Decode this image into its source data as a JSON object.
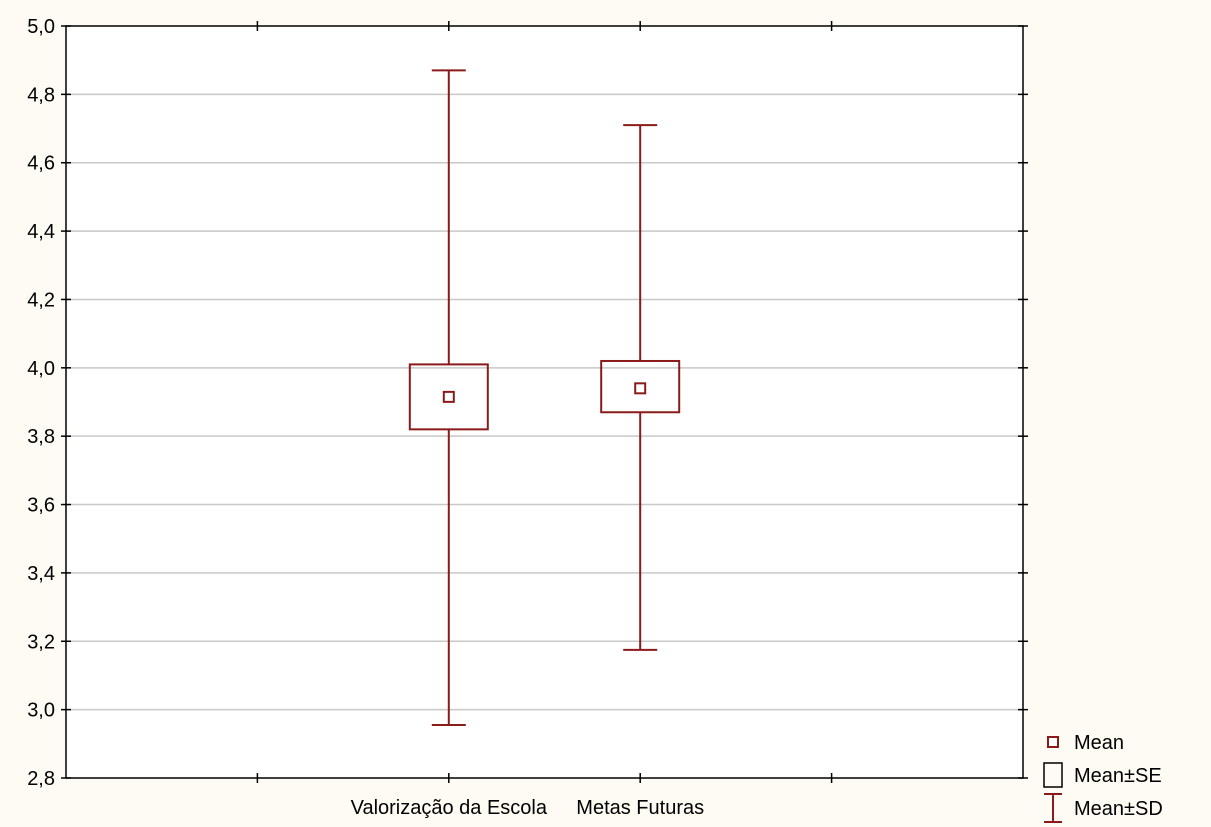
{
  "chart_data": {
    "type": "box",
    "title": "",
    "xlabel": "",
    "ylabel": "",
    "categories": [
      "Valorização da Escola",
      "Metas Futuras"
    ],
    "mean": [
      3.915,
      3.94
    ],
    "se_low": [
      3.82,
      3.87
    ],
    "se_high": [
      4.01,
      4.02
    ],
    "sd_low": [
      2.955,
      3.175
    ],
    "sd_high": [
      4.87,
      4.71
    ],
    "ylim": [
      2.8,
      5.0
    ],
    "yticks": [
      "2,8",
      "3,0",
      "3,2",
      "3,4",
      "3,6",
      "3,8",
      "4,0",
      "4,2",
      "4,4",
      "4,6",
      "4,8",
      "5,0"
    ],
    "ytick_values": [
      2.8,
      3.0,
      3.2,
      3.4,
      3.6,
      3.8,
      4.0,
      4.2,
      4.4,
      4.6,
      4.8,
      5.0
    ],
    "grid": true,
    "legend": {
      "position": "bottom-right",
      "entries": [
        "Mean",
        "Mean±SE",
        "Mean±SD"
      ]
    },
    "colors": {
      "series": "#8b1a1a",
      "grid": "#c8c8c8",
      "background": "#fdfbf3",
      "plot_background": "#ffffff"
    }
  }
}
